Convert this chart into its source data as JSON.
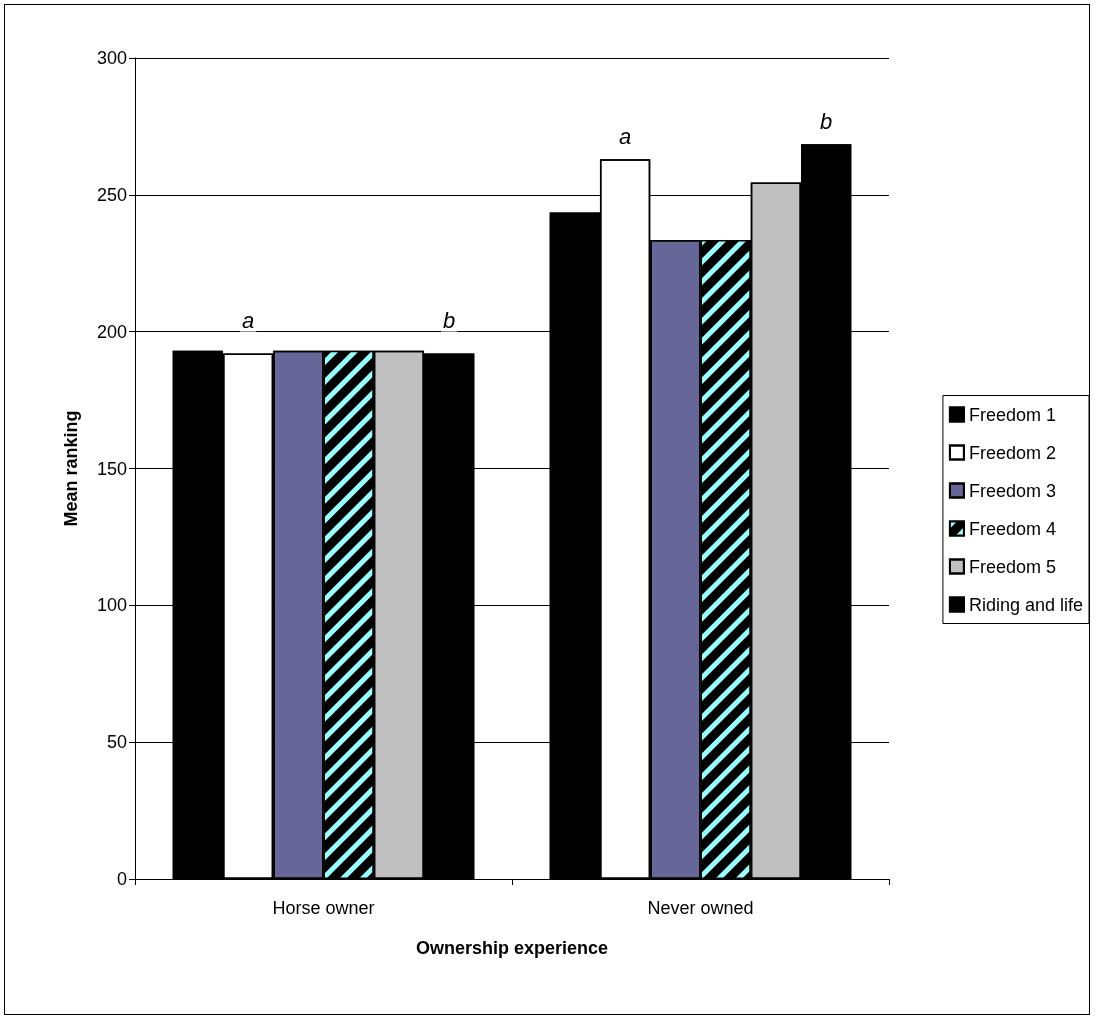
{
  "chart_data": {
    "type": "bar",
    "xlabel": "Ownership experience",
    "ylabel": "Mean ranking",
    "categories": [
      "Horse owner",
      "Never owned"
    ],
    "series": [
      {
        "name": "Freedom 1",
        "color": "#000000",
        "values": [
          193,
          243.5
        ]
      },
      {
        "name": "Freedom 2",
        "color": "#ffffff",
        "values": [
          192,
          263
        ]
      },
      {
        "name": "Freedom 3",
        "color": "#666699",
        "values": [
          193,
          233.5
        ]
      },
      {
        "name": "Freedom 4",
        "color": "#000000",
        "values": [
          193,
          233.5
        ]
      },
      {
        "name": "Freedom 5",
        "color": "#c0c0c0",
        "values": [
          193,
          254.5
        ]
      },
      {
        "name": "Riding and life",
        "color": "#000000",
        "values": [
          192,
          268.5
        ]
      }
    ],
    "annotations": [
      "a",
      "b",
      "a",
      "b"
    ],
    "ylim": [
      0,
      300
    ],
    "yticks": [
      0,
      50,
      100,
      150,
      200,
      250,
      300
    ],
    "grid": "y",
    "legend": "right"
  }
}
